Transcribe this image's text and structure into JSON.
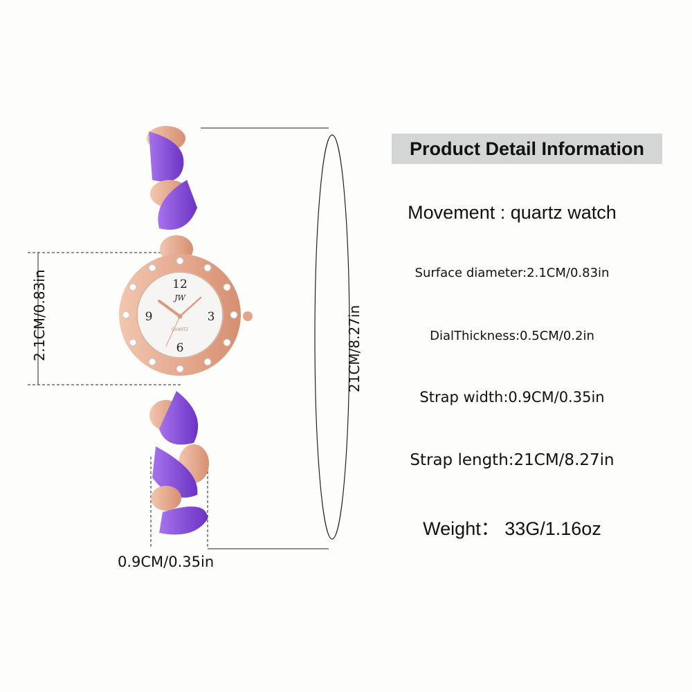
{
  "heading": "Product Detail Information",
  "specs": {
    "movement": "Movement : quartz watch",
    "surface_diameter": "Surface diameter:2.1CM/0.83in",
    "dial_thickness": "DialThickness:0.5CM/0.2in",
    "strap_width": "Strap width:0.9CM/0.35in",
    "strap_length": "Strap length:21CM/8.27in",
    "weight": "Weight： 33G/1.16oz"
  },
  "dimensions": {
    "dial_diameter": "2.1CM/0.83in",
    "strap_length": "21CM/8.27in",
    "strap_width": "0.9CM/0.35in"
  },
  "watch": {
    "brand_logo": "JW",
    "dial_text": "QUARTZ",
    "numerals": [
      "12",
      "3",
      "6",
      "9"
    ]
  },
  "colors": {
    "title_bg": "#d4d5d5",
    "rose_gold": "#e3a58a",
    "purple": "#8a4fd8",
    "background": "#fdfdfb"
  }
}
